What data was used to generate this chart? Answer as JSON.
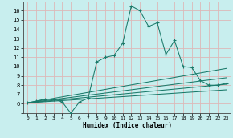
{
  "xlabel": "Humidex (Indice chaleur)",
  "background_color": "#c8eeee",
  "grid_color": "#ddb8b8",
  "line_color": "#1a7a6a",
  "xlim": [
    -0.5,
    23.5
  ],
  "ylim": [
    5,
    17.0
  ],
  "xticks": [
    0,
    1,
    2,
    3,
    4,
    5,
    6,
    7,
    8,
    9,
    10,
    11,
    12,
    13,
    14,
    15,
    16,
    17,
    18,
    19,
    20,
    21,
    22,
    23
  ],
  "yticks": [
    5,
    6,
    7,
    8,
    9,
    10,
    11,
    12,
    13,
    14,
    15,
    16
  ],
  "main_x": [
    0,
    1,
    2,
    3,
    4,
    5,
    6,
    7,
    8,
    9,
    10,
    11,
    12,
    13,
    14,
    15,
    16,
    17,
    18,
    19,
    20,
    21,
    22,
    23
  ],
  "main_y": [
    6.1,
    6.3,
    6.5,
    6.5,
    6.2,
    5.0,
    6.2,
    6.6,
    10.5,
    11.0,
    11.2,
    12.5,
    16.5,
    16.0,
    14.3,
    14.7,
    11.3,
    12.8,
    10.0,
    9.9,
    8.5,
    8.0,
    8.0,
    8.2
  ],
  "trend_lines": [
    {
      "x": [
        0,
        23
      ],
      "y": [
        6.1,
        9.8
      ]
    },
    {
      "x": [
        0,
        23
      ],
      "y": [
        6.1,
        8.8
      ]
    },
    {
      "x": [
        0,
        23
      ],
      "y": [
        6.1,
        8.1
      ]
    },
    {
      "x": [
        0,
        23
      ],
      "y": [
        6.1,
        7.5
      ]
    }
  ]
}
